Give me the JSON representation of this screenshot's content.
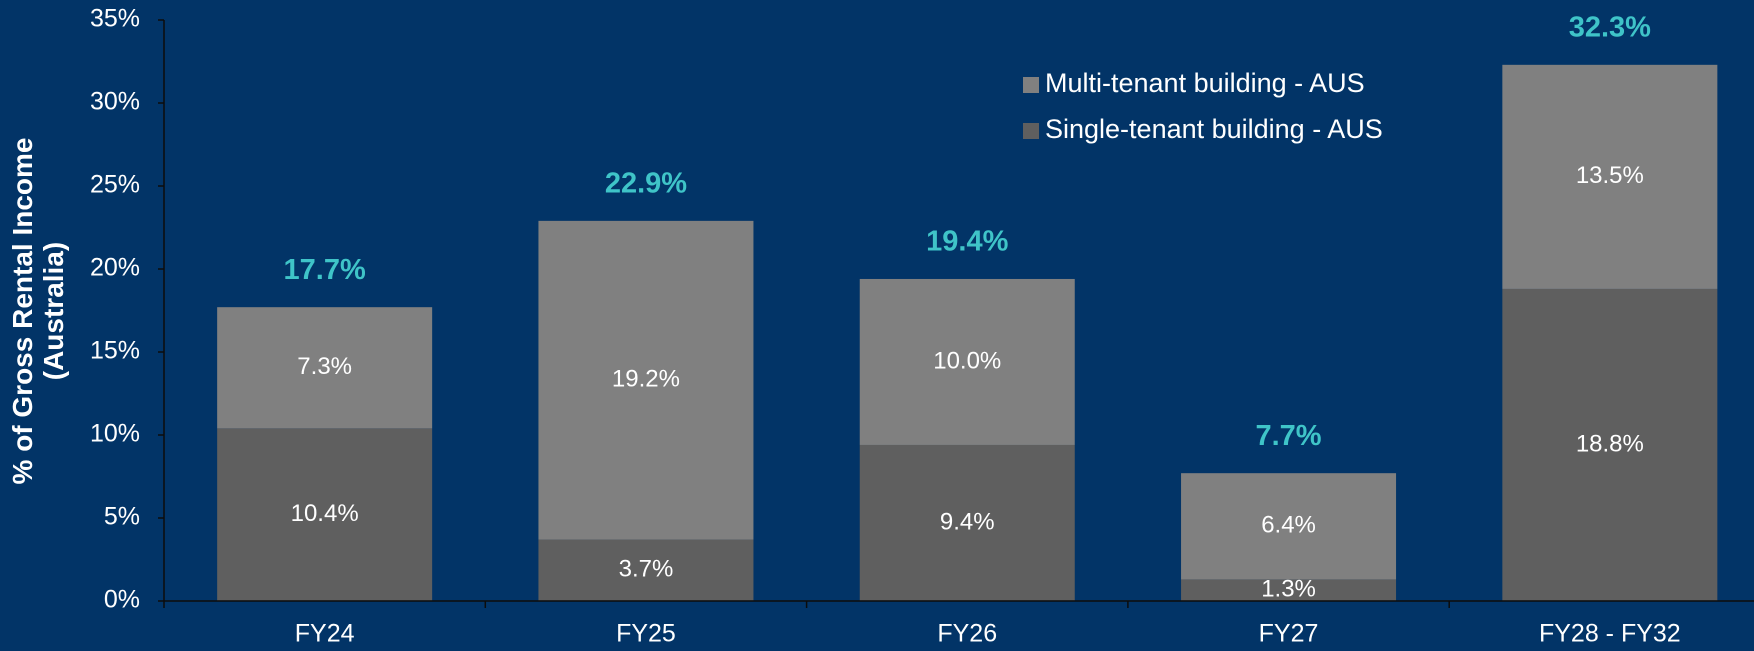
{
  "chart_data": {
    "type": "stacked_bar",
    "ylabel": [
      "% of Gross Rental Income",
      "(Australia)"
    ],
    "categories": [
      "FY24",
      "FY25",
      "FY26",
      "FY27",
      "FY28 - FY32"
    ],
    "series": [
      {
        "name": "Single-tenant building - AUS",
        "color": "#5f5f5f",
        "values": [
          10.4,
          3.7,
          9.4,
          1.3,
          18.8
        ],
        "value_labels": [
          "10.4%",
          "3.7%",
          "9.4%",
          "1.3%",
          "18.8%"
        ]
      },
      {
        "name": "Multi-tenant building - AUS",
        "color": "#808080",
        "values": [
          7.3,
          19.2,
          10.0,
          6.4,
          13.5
        ],
        "value_labels": [
          "7.3%",
          "19.2%",
          "10.0%",
          "6.4%",
          "13.5%"
        ]
      }
    ],
    "totals": {
      "color": "#3fc4c8",
      "values": [
        17.7,
        22.9,
        19.4,
        7.7,
        32.3
      ],
      "value_labels": [
        "17.7%",
        "22.9%",
        "19.4%",
        "7.7%",
        "32.3%"
      ]
    },
    "ylim": [
      0,
      35
    ],
    "yticks": [
      {
        "value": 0,
        "label": "0%"
      },
      {
        "value": 5,
        "label": "5%"
      },
      {
        "value": 10,
        "label": "10%"
      },
      {
        "value": 15,
        "label": "15%"
      },
      {
        "value": 20,
        "label": "20%"
      },
      {
        "value": 25,
        "label": "25%"
      },
      {
        "value": 30,
        "label": "30%"
      },
      {
        "value": 35,
        "label": "35%"
      }
    ],
    "legend": "top-right",
    "background": "#023467"
  }
}
